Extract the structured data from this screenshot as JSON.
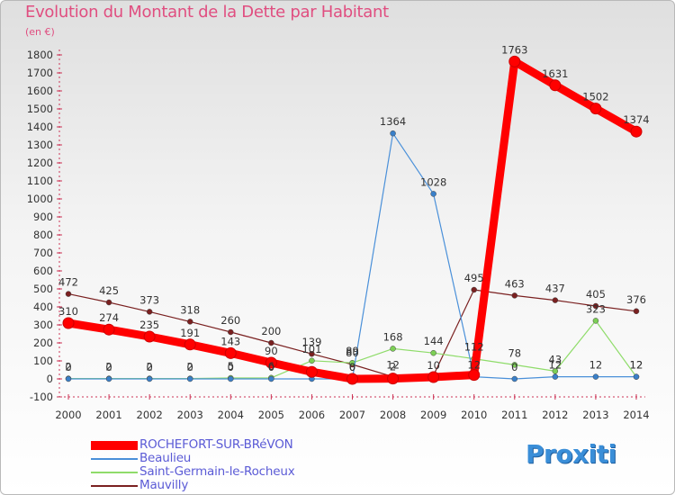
{
  "chart_data": {
    "type": "line",
    "title": "Evolution du Montant de la Dette par Habitant",
    "ylabel": "(en €)",
    "xlabel": "",
    "ylim": [
      -100,
      1800
    ],
    "yticks": [
      -100,
      0,
      100,
      200,
      300,
      400,
      500,
      600,
      700,
      800,
      900,
      1000,
      1100,
      1200,
      1300,
      1400,
      1500,
      1600,
      1700,
      1800
    ],
    "x": [
      "2000",
      "2001",
      "2002",
      "2003",
      "2004",
      "2005",
      "2006",
      "2007",
      "2008",
      "2009",
      "2010",
      "2011",
      "2012",
      "2013",
      "2014"
    ],
    "grid": false,
    "legend_position": "bottom-left",
    "series": [
      {
        "name": "ROCHEFORT-SUR-BRéVON",
        "color": "#ff0000",
        "values": [
          310,
          274,
          235,
          191,
          143,
          90,
          39,
          0,
          2,
          10,
          22,
          1763,
          1631,
          1502,
          1374
        ],
        "labels": [
          "310",
          "274",
          "235",
          "191",
          "143",
          "90",
          "",
          "0",
          "2",
          "10",
          "",
          "1763",
          "1631",
          "1502",
          "1374"
        ]
      },
      {
        "name": "Beaulieu",
        "color": "#4a90d9",
        "values": [
          0,
          0,
          0,
          0,
          0,
          0,
          0,
          0,
          1364,
          1028,
          12,
          0,
          12,
          12,
          12
        ],
        "labels": [
          "0",
          "0",
          "0",
          "0",
          "0",
          "0",
          "",
          "0",
          "1364",
          "1028",
          "12",
          "0",
          "12",
          "12",
          "12"
        ]
      },
      {
        "name": "Saint-Germain-le-Rocheux",
        "color": "#8fdc6a",
        "values": [
          2,
          2,
          2,
          2,
          5,
          6,
          101,
          89,
          168,
          144,
          112,
          78,
          43,
          323,
          12
        ],
        "labels": [
          "2",
          "2",
          "2",
          "2",
          "5",
          "6",
          "101",
          "89",
          "168",
          "144",
          "112",
          "78",
          "43",
          "323",
          "12"
        ]
      },
      {
        "name": "Mauvilly",
        "color": "#7a2020",
        "values": [
          472,
          425,
          373,
          318,
          260,
          200,
          139,
          80,
          12,
          19,
          495,
          463,
          437,
          405,
          376
        ],
        "labels": [
          "472",
          "425",
          "373",
          "318",
          "260",
          "200",
          "139",
          "80",
          "12",
          "",
          "495",
          "463",
          "437",
          "405",
          "376"
        ]
      }
    ]
  },
  "brand": {
    "text": "Proxiti"
  }
}
